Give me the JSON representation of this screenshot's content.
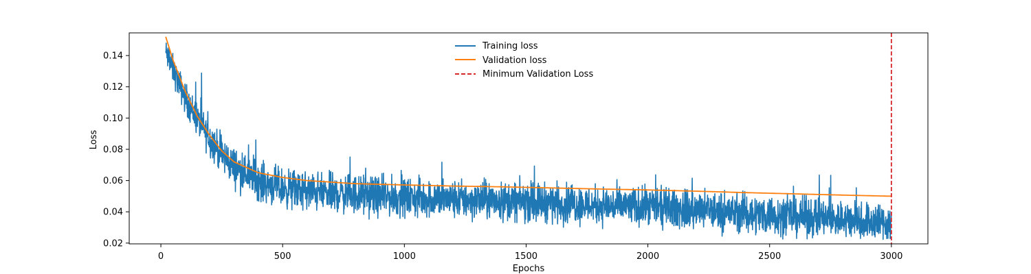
{
  "chart_data": {
    "type": "line",
    "title": "",
    "xlabel": "Epochs",
    "ylabel": "Loss",
    "xlim": [
      -130,
      3150
    ],
    "ylim": [
      0.0195,
      0.1545
    ],
    "xticks": [
      0,
      500,
      1000,
      1500,
      2000,
      2500,
      3000
    ],
    "xtick_labels": [
      "0",
      "500",
      "1000",
      "1500",
      "2000",
      "2500",
      "3000"
    ],
    "yticks": [
      0.02,
      0.04,
      0.06,
      0.08,
      0.1,
      0.12,
      0.14
    ],
    "ytick_labels": [
      "0.02",
      "0.04",
      "0.06",
      "0.08",
      "0.10",
      "0.12",
      "0.14"
    ],
    "grid": false,
    "legend_position": "upper-center",
    "colors": {
      "training": "#1f77b4",
      "validation": "#ff7f0e",
      "minimum": "#d62728"
    },
    "series": [
      {
        "name": "Training loss",
        "style": "solid-noisy",
        "x": [
          20,
          50,
          100,
          150,
          200,
          250,
          300,
          400,
          500,
          600,
          700,
          800,
          900,
          1000,
          1200,
          1400,
          1600,
          1800,
          2000,
          2200,
          2400,
          2600,
          2800,
          3000
        ],
        "values": [
          0.142,
          0.131,
          0.113,
          0.099,
          0.087,
          0.077,
          0.069,
          0.06,
          0.055,
          0.053,
          0.052,
          0.051,
          0.05,
          0.049,
          0.048,
          0.047,
          0.046,
          0.044,
          0.043,
          0.041,
          0.039,
          0.037,
          0.035,
          0.033
        ]
      },
      {
        "name": "Validation loss",
        "style": "solid",
        "x": [
          20,
          50,
          100,
          150,
          200,
          250,
          300,
          400,
          500,
          600,
          700,
          800,
          1000,
          1200,
          1400,
          1600,
          1800,
          2000,
          2200,
          2400,
          2600,
          2800,
          3000
        ],
        "values": [
          0.152,
          0.137,
          0.117,
          0.101,
          0.089,
          0.079,
          0.072,
          0.065,
          0.062,
          0.06,
          0.059,
          0.058,
          0.0572,
          0.0565,
          0.056,
          0.0553,
          0.0546,
          0.054,
          0.0532,
          0.0523,
          0.0515,
          0.0507,
          0.05
        ]
      }
    ],
    "vlines": [
      {
        "name": "Minimum Validation Loss",
        "style": "dashed",
        "x": 3000
      }
    ]
  },
  "legend": {
    "items": [
      "Training loss",
      "Validation loss",
      "Minimum Validation Loss"
    ]
  }
}
